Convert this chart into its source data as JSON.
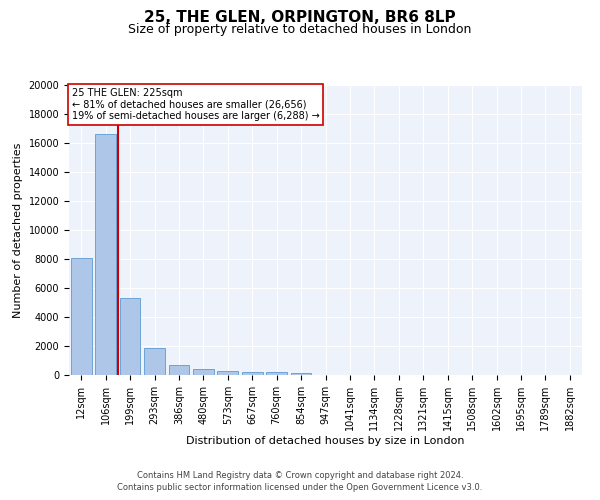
{
  "title1": "25, THE GLEN, ORPINGTON, BR6 8LP",
  "title2": "Size of property relative to detached houses in London",
  "xlabel": "Distribution of detached houses by size in London",
  "ylabel": "Number of detached properties",
  "categories": [
    "12sqm",
    "106sqm",
    "199sqm",
    "293sqm",
    "386sqm",
    "480sqm",
    "573sqm",
    "667sqm",
    "760sqm",
    "854sqm",
    "947sqm",
    "1041sqm",
    "1134sqm",
    "1228sqm",
    "1321sqm",
    "1415sqm",
    "1508sqm",
    "1602sqm",
    "1695sqm",
    "1789sqm",
    "1882sqm"
  ],
  "values": [
    8100,
    16600,
    5300,
    1850,
    700,
    380,
    280,
    230,
    190,
    150,
    0,
    0,
    0,
    0,
    0,
    0,
    0,
    0,
    0,
    0,
    0
  ],
  "bar_color": "#aec6e8",
  "bar_edgecolor": "#5b9bd5",
  "vline_color": "#cc0000",
  "vline_x": 1.5,
  "annotation_text": "25 THE GLEN: 225sqm\n← 81% of detached houses are smaller (26,656)\n19% of semi-detached houses are larger (6,288) →",
  "annotation_box_color": "#ffffff",
  "annotation_box_edgecolor": "#cc0000",
  "ylim": [
    0,
    20000
  ],
  "yticks": [
    0,
    2000,
    4000,
    6000,
    8000,
    10000,
    12000,
    14000,
    16000,
    18000,
    20000
  ],
  "footer1": "Contains HM Land Registry data © Crown copyright and database right 2024.",
  "footer2": "Contains public sector information licensed under the Open Government Licence v3.0.",
  "bg_color": "#eef2fb",
  "grid_color": "#ffffff",
  "title1_fontsize": 11,
  "title2_fontsize": 9,
  "xlabel_fontsize": 8,
  "ylabel_fontsize": 8,
  "tick_fontsize": 7,
  "annot_fontsize": 7,
  "footer_fontsize": 6
}
